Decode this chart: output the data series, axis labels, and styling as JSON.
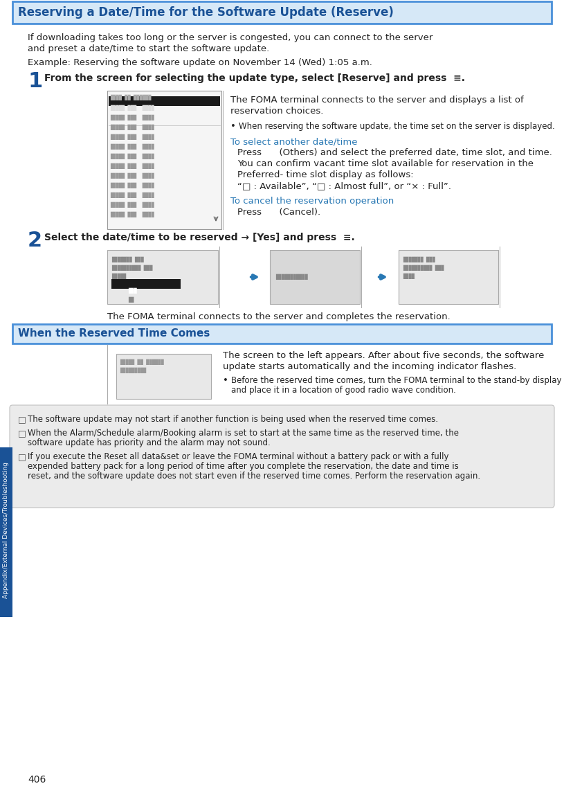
{
  "title": "Reserving a Date/Time for the Software Update (Reserve)",
  "title_color": "#1a5296",
  "title_bg": "#d6e8f7",
  "title_border": "#4a90d9",
  "page_bg": "#ffffff",
  "intro_line1": "If downloading takes too long or the server is congested, you can connect to the server",
  "intro_line2": "and preset a date/time to start the software update.",
  "example_text": "Example: Reserving the software update on November 14 (Wed) 1:05 a.m.",
  "step1_instruction": "From the screen for selecting the update type, select [Reserve] and press",
  "step1_body_line1": "The FOMA terminal connects to the server and displays a list of",
  "step1_body_line2": "reservation choices.",
  "step1_bullet": "When reserving the software update, the time set on the server is displayed.",
  "step1_link1": "To select another date/time",
  "step1_link1_l1": "Press      (Others) and select the preferred date, time slot, and time.",
  "step1_link1_l2": "You can confirm vacant time slot available for reservation in the",
  "step1_link1_l3": "Preferred- time slot display as follows:",
  "step1_link1_l4": "“□ : Available”, “□ : Almost full”, or “× : Full”.",
  "step1_link2": "To cancel the reservation operation",
  "step1_link2_text": "Press      (Cancel).",
  "step2_instruction": "Select the date/time to be reserved → [Yes] and press",
  "step2_footer": "The FOMA terminal connects to the server and completes the reservation.",
  "section2_title": "When the Reserved Time Comes",
  "section2_body_l1": "The screen to the left appears. After about five seconds, the software",
  "section2_body_l2": "update starts automatically and the incoming indicator flashes.",
  "section2_bullet_l1": "Before the reserved time comes, turn the FOMA terminal to the stand-by display",
  "section2_bullet_l2": "and place it in a location of good radio wave condition.",
  "note1": "The software update may not start if another function is being used when the reserved time comes.",
  "note2_l1": "When the Alarm/Schedule alarm/Booking alarm is set to start at the same time as the reserved time, the",
  "note2_l2": "software update has priority and the alarm may not sound.",
  "note3_l1": "If you execute the Reset all data&set or leave the FOMA terminal without a battery pack or with a fully",
  "note3_l2": "expended battery pack for a long period of time after you complete the reservation, the date and time is",
  "note3_l3": "reset, and the software update does not start even if the reserved time comes. Perform the reservation again.",
  "page_num": "406",
  "sidebar_text": "Appendix/External Devices/Troubleshooting",
  "sidebar_bg": "#1a5296",
  "link_color": "#2878b4",
  "text_color": "#222222",
  "note_bg": "#ebebeb",
  "note_border": "#c0c0c0",
  "step_num_color": "#1a5296"
}
